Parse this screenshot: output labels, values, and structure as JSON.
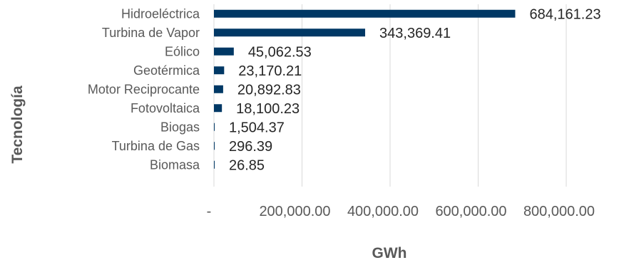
{
  "chart_data": {
    "type": "bar",
    "orientation": "horizontal",
    "categories": [
      "Hidroeléctrica",
      "Turbina de Vapor",
      "Eólico",
      "Geotérmica",
      "Motor Reciprocante",
      "Fotovoltaica",
      "Biogas",
      "Turbina de Gas",
      "Biomasa"
    ],
    "values": [
      684161.23,
      343369.41,
      45062.53,
      23170.21,
      20892.83,
      18100.23,
      1504.37,
      296.39,
      26.85
    ],
    "value_labels": [
      "684,161.23",
      "343,369.41",
      "45,062.53",
      "23,170.21",
      "20,892.83",
      "18,100.23",
      "1,504.37",
      "296.39",
      "26.85"
    ],
    "xlabel": "GWh",
    "ylabel": "Tecnología",
    "xlim": [
      0,
      800000
    ],
    "x_ticks": [
      0,
      200000,
      400000,
      600000,
      800000
    ],
    "x_tick_labels": [
      "-",
      "200,000.00",
      "400,000.00",
      "600,000.00",
      "800,000.00"
    ],
    "grid": true,
    "bar_color": "#003865"
  }
}
